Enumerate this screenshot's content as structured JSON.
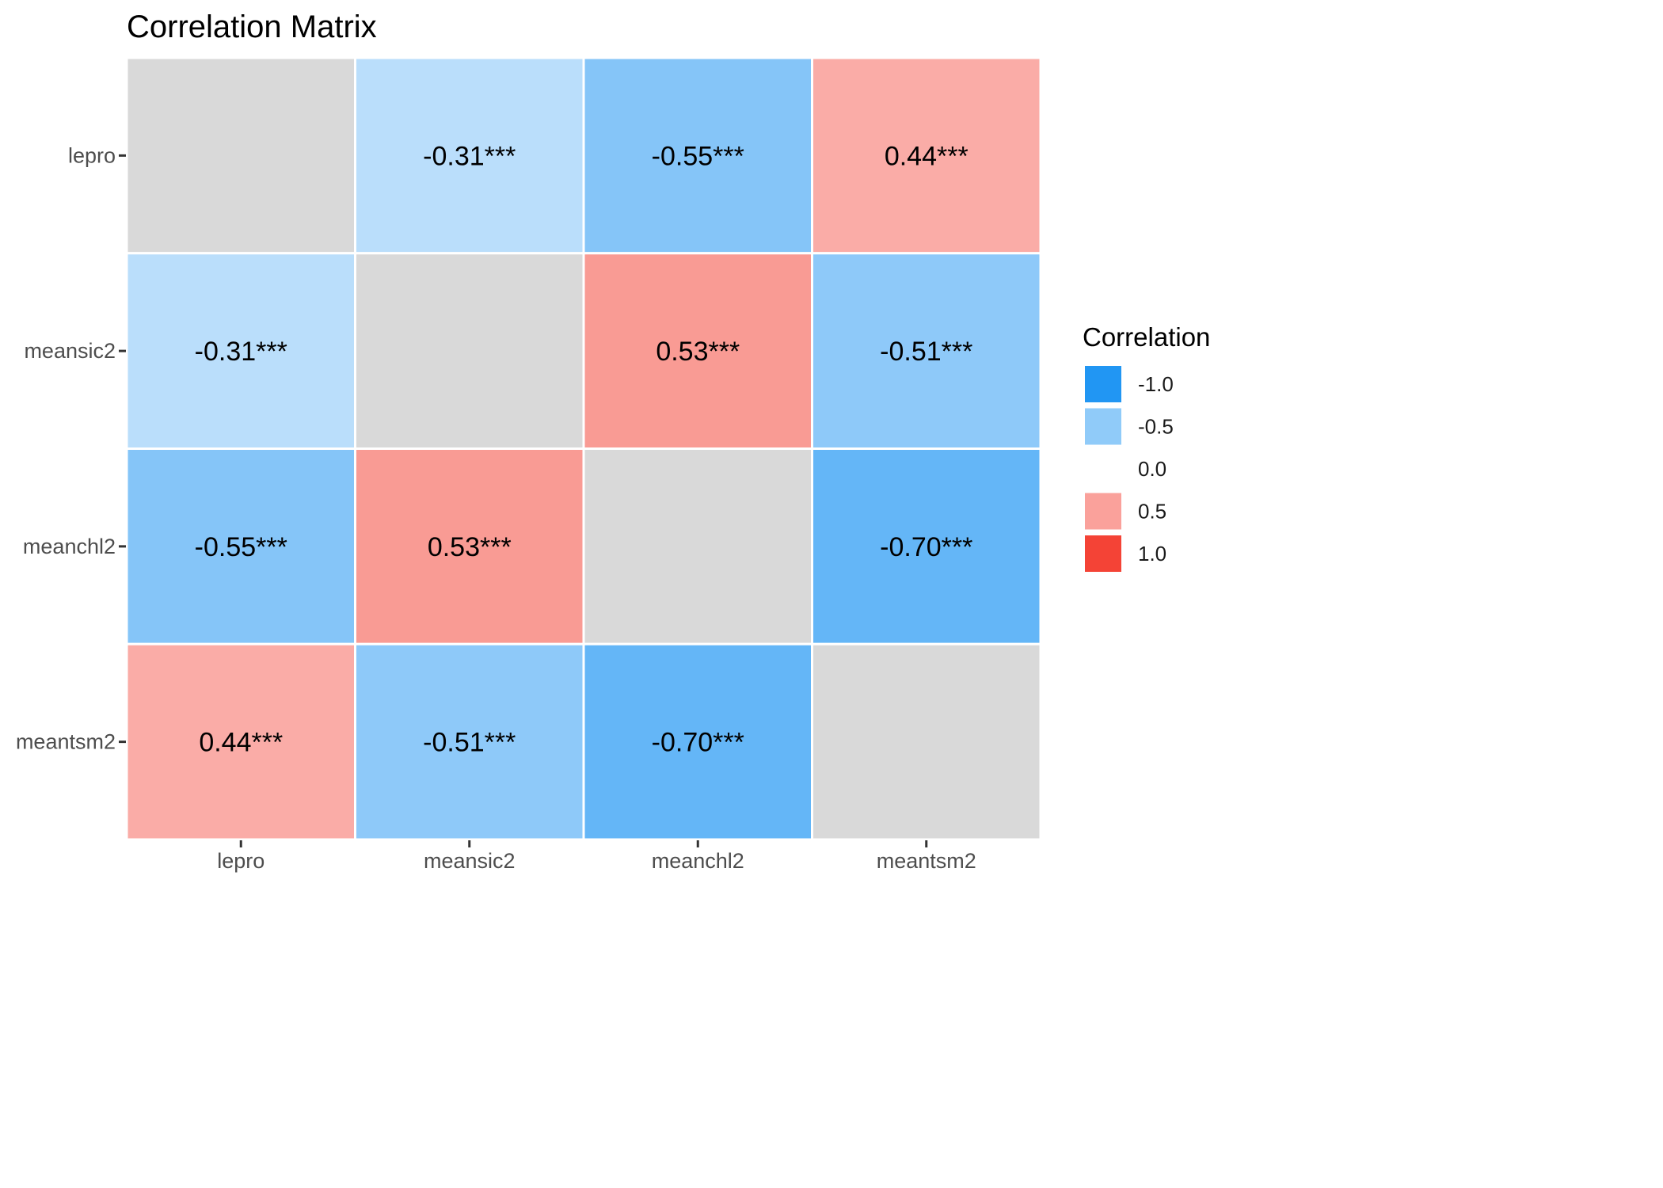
{
  "chart_data": {
    "type": "heatmap",
    "title": "Correlation Matrix",
    "variables": [
      "lepro",
      "meansic2",
      "meanchl2",
      "meantsm2"
    ],
    "x_categories": [
      "lepro",
      "meansic2",
      "meanchl2",
      "meantsm2"
    ],
    "y_categories": [
      "lepro",
      "meansic2",
      "meanchl2",
      "meantsm2"
    ],
    "matrix": [
      [
        null,
        -0.31,
        -0.55,
        0.44
      ],
      [
        -0.31,
        null,
        0.53,
        -0.51
      ],
      [
        -0.55,
        0.53,
        null,
        -0.7
      ],
      [
        0.44,
        -0.51,
        -0.7,
        null
      ]
    ],
    "cell_labels": [
      [
        "",
        "-0.31***",
        "-0.55***",
        "0.44***"
      ],
      [
        "-0.31***",
        "",
        "0.53***",
        "-0.51***"
      ],
      [
        "-0.55***",
        "0.53***",
        "",
        "-0.70***"
      ],
      [
        "0.44***",
        "-0.51***",
        "-0.70***",
        ""
      ]
    ],
    "diagonal_color": "#d9d9d9",
    "color_scale": {
      "low": "#2196f3",
      "mid": "#ffffff",
      "high": "#f44336",
      "limits": [
        -1.0,
        1.0
      ]
    },
    "legend": {
      "title": "Correlation",
      "position": "right",
      "items": [
        {
          "label": "-1.0",
          "value": -1.0
        },
        {
          "label": "-0.5",
          "value": -0.5
        },
        {
          "label": "0.0",
          "value": 0.0
        },
        {
          "label": "0.5",
          "value": 0.5
        },
        {
          "label": "1.0",
          "value": 1.0
        }
      ]
    }
  }
}
